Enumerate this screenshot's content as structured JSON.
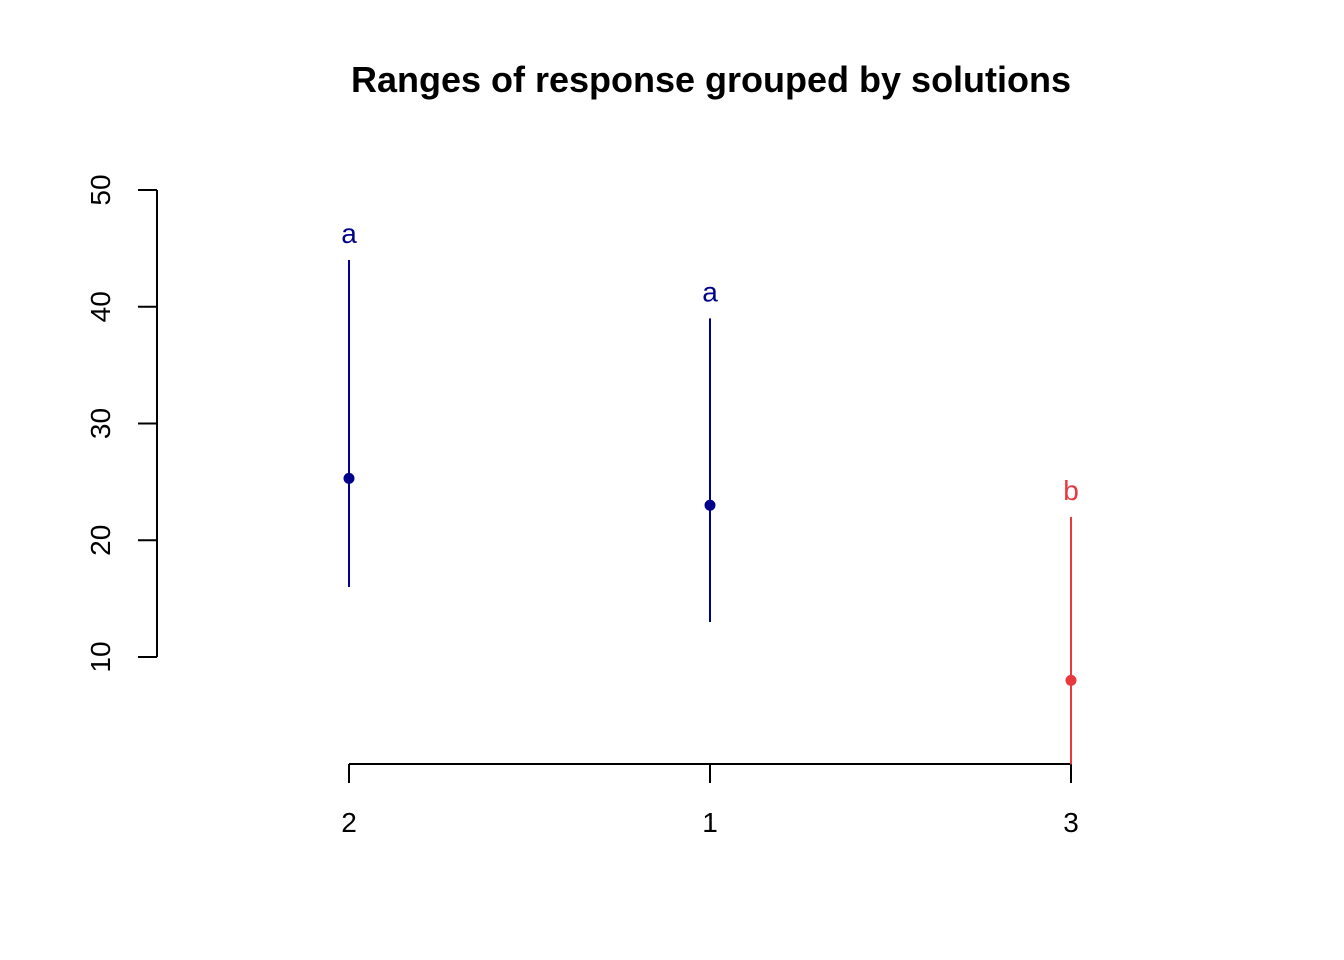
{
  "chart_data": {
    "type": "scatter",
    "title": "Ranges of response grouped by solutions",
    "xlabel": "",
    "ylabel": "",
    "ylim": [
      0.8,
      50
    ],
    "y_ticks": [
      10,
      20,
      30,
      40,
      50
    ],
    "categories": [
      "2",
      "1",
      "3"
    ],
    "points": [
      {
        "category": "2",
        "center": 25.3,
        "low": 16,
        "high": 44,
        "label": "a",
        "color": "#00008B"
      },
      {
        "category": "1",
        "center": 23,
        "low": 13,
        "high": 39,
        "label": "a",
        "color": "#00008B"
      },
      {
        "category": "3",
        "center": 8,
        "low": 0.8,
        "high": 22,
        "label": "b",
        "color": "#E8393E"
      }
    ],
    "grid": false,
    "legend": "none"
  }
}
